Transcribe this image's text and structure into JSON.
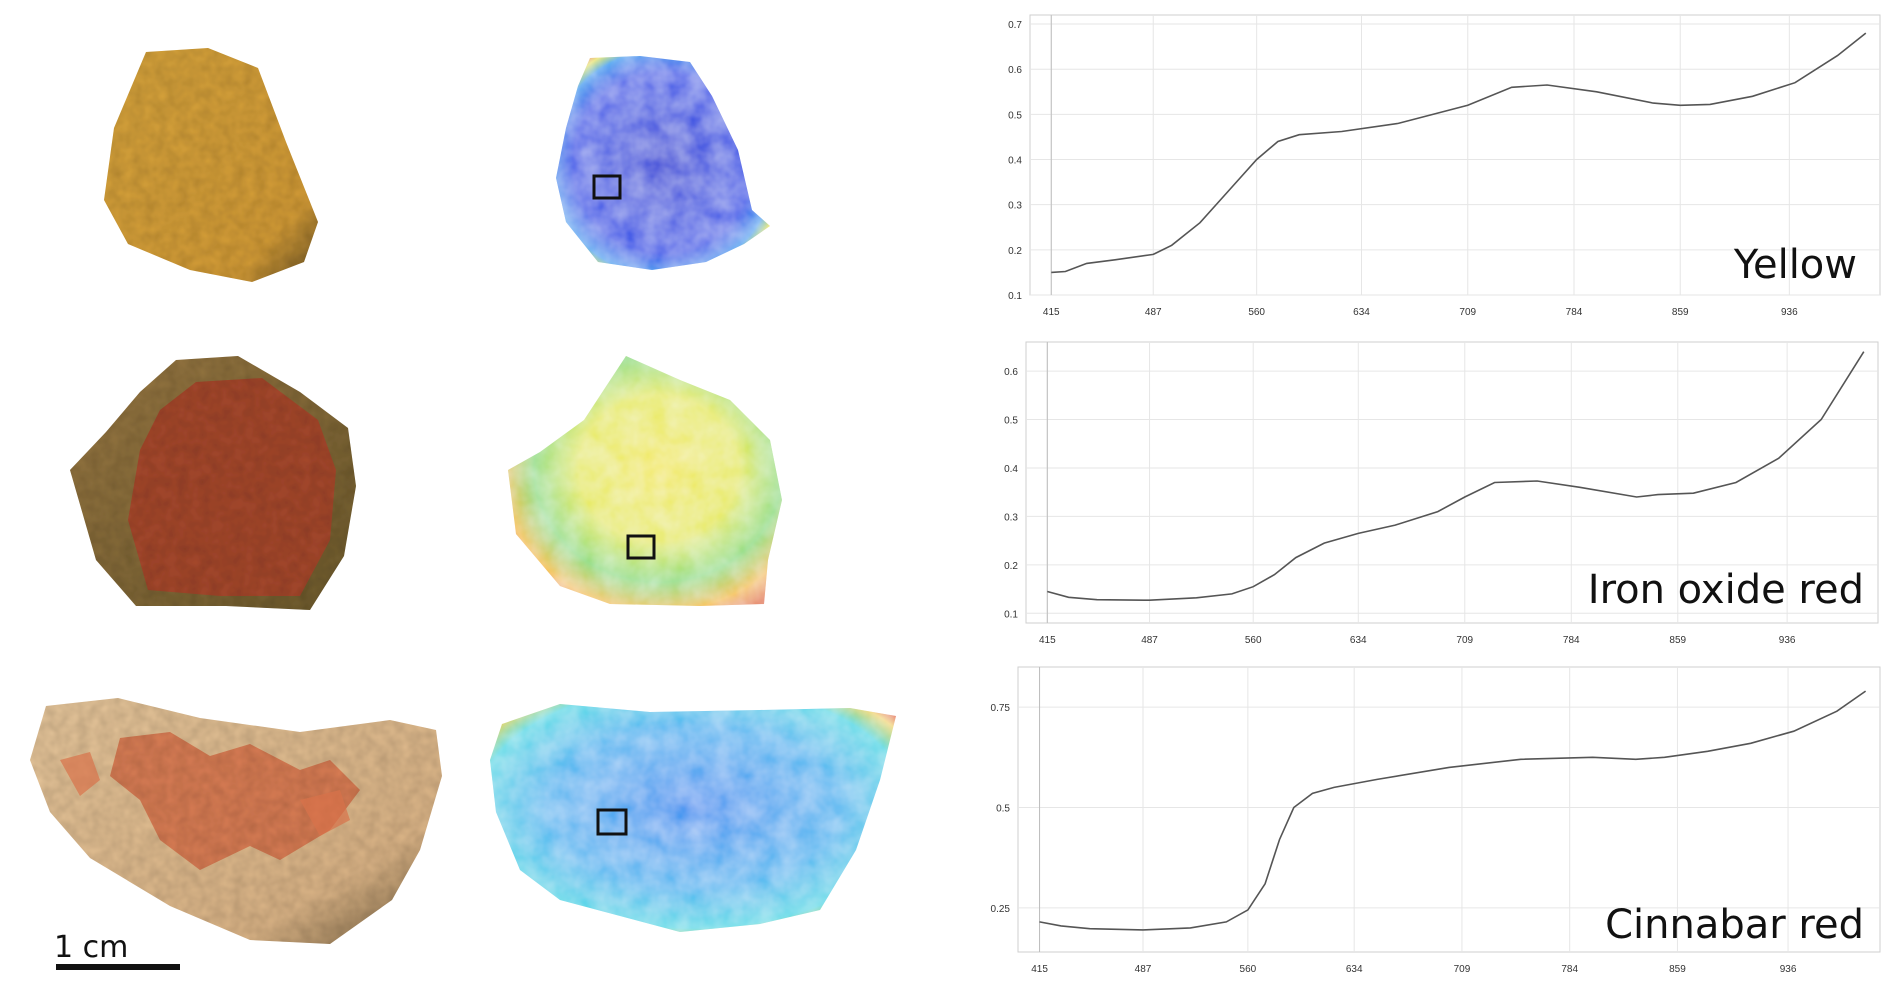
{
  "figure": {
    "scale_bar_label": "1 cm",
    "colors": {
      "yellow_fragment": "#d9a23a",
      "red_fragment": "#a9492e",
      "cinnabar_fragment": "#dfb98d",
      "curve": "#555555",
      "roi_box": "#111111"
    }
  },
  "chart_data": [
    {
      "type": "line",
      "pigment_label": "Yellow",
      "xticks": [
        "415",
        "487",
        "560",
        "634",
        "709",
        "784",
        "859",
        "936"
      ],
      "yticks": [
        "0.1",
        "0.2",
        "0.3",
        "0.4",
        "0.5",
        "0.6",
        "0.7"
      ],
      "xlim": [
        400,
        1000
      ],
      "ylim": [
        0.1,
        0.72
      ],
      "series": [
        {
          "x": [
            415,
            425,
            440,
            460,
            487,
            500,
            520,
            540,
            560,
            575,
            590,
            620,
            660,
            709,
            740,
            765,
            800,
            840,
            859,
            880,
            910,
            940,
            970,
            990
          ],
          "y": [
            0.15,
            0.152,
            0.17,
            0.178,
            0.19,
            0.21,
            0.26,
            0.33,
            0.4,
            0.44,
            0.455,
            0.462,
            0.48,
            0.52,
            0.56,
            0.565,
            0.55,
            0.525,
            0.52,
            0.522,
            0.54,
            0.57,
            0.63,
            0.68
          ]
        }
      ]
    },
    {
      "type": "line",
      "pigment_label": "Iron oxide red",
      "xticks": [
        "415",
        "487",
        "560",
        "634",
        "709",
        "784",
        "859",
        "936"
      ],
      "yticks": [
        "0.1",
        "0.2",
        "0.3",
        "0.4",
        "0.5",
        "0.6"
      ],
      "xlim": [
        400,
        1000
      ],
      "ylim": [
        0.08,
        0.66
      ],
      "series": [
        {
          "x": [
            415,
            430,
            450,
            487,
            520,
            545,
            560,
            575,
            590,
            610,
            634,
            660,
            690,
            709,
            730,
            760,
            790,
            830,
            845,
            870,
            900,
            930,
            960,
            990
          ],
          "y": [
            0.145,
            0.133,
            0.128,
            0.127,
            0.132,
            0.14,
            0.155,
            0.18,
            0.215,
            0.245,
            0.265,
            0.282,
            0.31,
            0.34,
            0.37,
            0.373,
            0.36,
            0.34,
            0.345,
            0.348,
            0.37,
            0.42,
            0.5,
            0.64
          ]
        }
      ]
    },
    {
      "type": "line",
      "pigment_label": "Cinnabar red",
      "xticks": [
        "415",
        "487",
        "560",
        "634",
        "709",
        "784",
        "859",
        "936"
      ],
      "yticks": [
        "0.25",
        "0.5",
        "0.75"
      ],
      "xlim": [
        400,
        1000
      ],
      "ylim": [
        0.14,
        0.85
      ],
      "series": [
        {
          "x": [
            415,
            430,
            450,
            487,
            520,
            545,
            560,
            572,
            582,
            592,
            605,
            620,
            650,
            700,
            750,
            800,
            830,
            850,
            880,
            910,
            940,
            970,
            990
          ],
          "y": [
            0.215,
            0.205,
            0.198,
            0.195,
            0.2,
            0.215,
            0.245,
            0.31,
            0.42,
            0.5,
            0.535,
            0.55,
            0.57,
            0.6,
            0.62,
            0.625,
            0.62,
            0.625,
            0.64,
            0.66,
            0.69,
            0.74,
            0.79
          ]
        }
      ]
    }
  ]
}
